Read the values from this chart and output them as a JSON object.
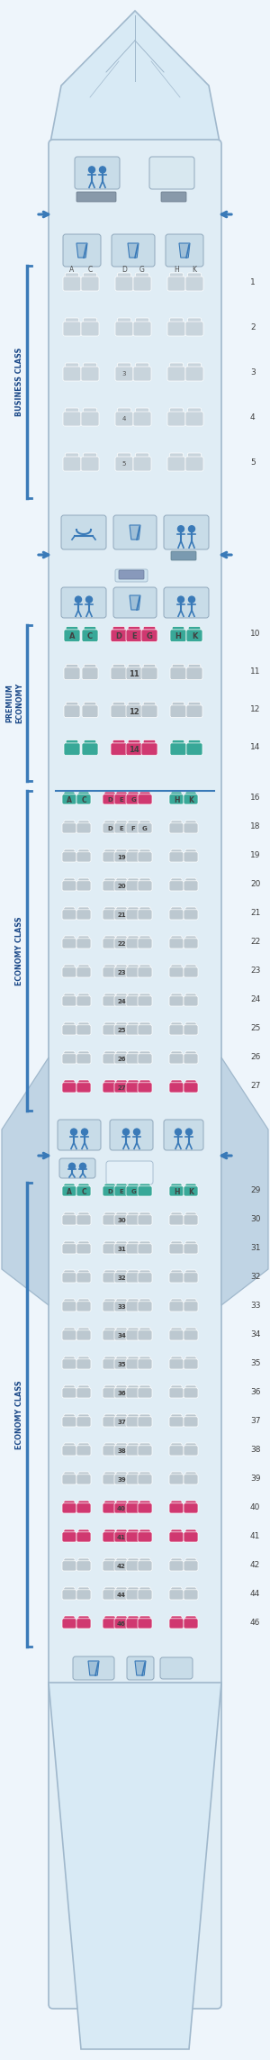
{
  "fig_w": 3.0,
  "fig_h": 22.87,
  "bg_color": "#eef5fb",
  "fuselage_color": "#e0edf5",
  "fuselage_edge": "#a0b8cc",
  "cabin_block_color": "#c8dce8",
  "arrow_color": "#3a7ab8",
  "seat_business": "#c8d4dc",
  "seat_premium_pink": "#d03870",
  "seat_premium_teal": "#38a898",
  "seat_economy": "#bcc8d0",
  "nose_color": "#d8eaf5",
  "wing_color": "#c0d4e4",
  "section_label_color": "#1a4888",
  "row_label_color": "#404040",
  "labels": {
    "business": "BUSINESS CLASS",
    "premium": "PREMIUM\nECONOMY",
    "economy1": "ECONOMY CLASS",
    "economy2": "ECONOMY CLASS"
  },
  "business_rows": [
    1,
    2,
    3,
    4,
    5
  ],
  "premium_rows": [
    10,
    11,
    12,
    14
  ],
  "premium_pink_rows": [
    10,
    14
  ],
  "economy1_rows": [
    16,
    18,
    19,
    20,
    21,
    22,
    23,
    24,
    25,
    26,
    27
  ],
  "economy1_teal_rows": [
    16
  ],
  "economy1_pink_rows": [
    27
  ],
  "economy2_rows": [
    29,
    30,
    31,
    32,
    33,
    34,
    35,
    36,
    37,
    38,
    39,
    40,
    41,
    42,
    44,
    46
  ],
  "economy2_teal_rows": [
    29
  ],
  "economy2_pink_rows": [
    40,
    41,
    46
  ]
}
